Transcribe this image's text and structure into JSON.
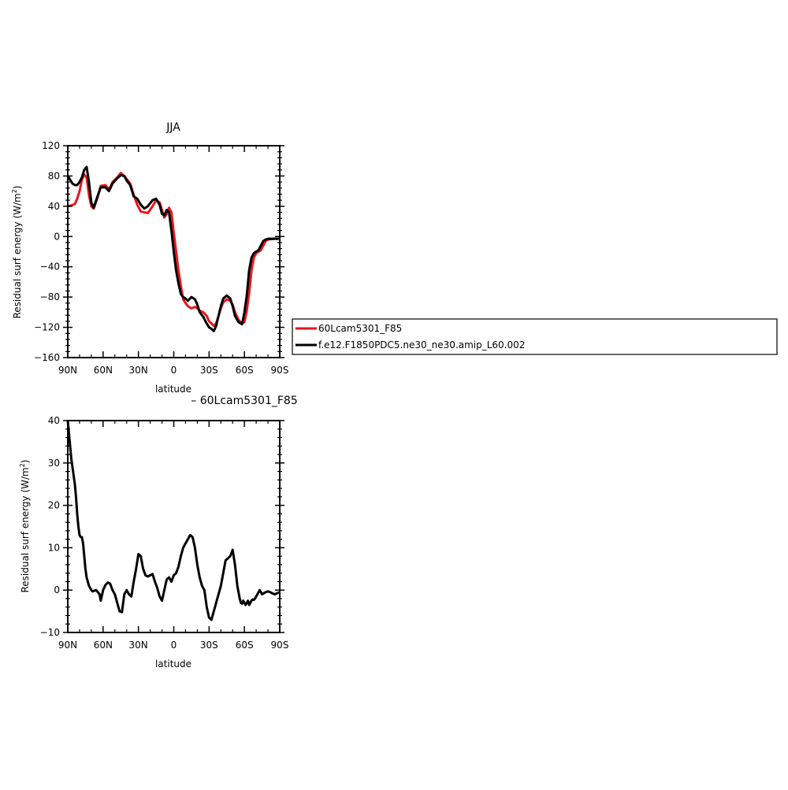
{
  "chart_data": [
    {
      "type": "line",
      "title": "JJA",
      "xlabel": "latitude",
      "ylabel": "Residual surf energy (W/m",
      "ylabel_sup": "2",
      "ylabel_close": ")",
      "xlim": [
        90,
        -90
      ],
      "ylim": [
        -160,
        120
      ],
      "xticks": [
        90,
        60,
        30,
        0,
        -30,
        -60,
        -90
      ],
      "xtick_labels": [
        "90N",
        "60N",
        "30N",
        "0",
        "30S",
        "60S",
        "90S"
      ],
      "yticks": [
        -160,
        -120,
        -80,
        -40,
        0,
        40,
        80,
        120
      ],
      "ytick_labels": [
        "−160",
        "−120",
        "−80",
        "−40",
        "0",
        "40",
        "80",
        "120"
      ],
      "legend_position": "right",
      "series": [
        {
          "name": "60Lcam5301_F85",
          "color": "#e8161b",
          "x": [
            90,
            87,
            84,
            82,
            80,
            78,
            76,
            74,
            72,
            70,
            68,
            65,
            62,
            58,
            55,
            52,
            48,
            45,
            42,
            40,
            37,
            34,
            31,
            28,
            25,
            22,
            18,
            15,
            12,
            10,
            8,
            6,
            4,
            2,
            0,
            -2,
            -4,
            -6,
            -8,
            -10,
            -12,
            -15,
            -18,
            -20,
            -22,
            -25,
            -28,
            -30,
            -32,
            -34,
            -36,
            -38,
            -40,
            -42,
            -45,
            -48,
            -50,
            -52,
            -55,
            -58,
            -60,
            -62,
            -64,
            -66,
            -68,
            -70,
            -72,
            -74,
            -76,
            -78,
            -80,
            -85,
            -88,
            -90
          ],
          "y": [
            40,
            41,
            43,
            50,
            60,
            75,
            82,
            78,
            55,
            40,
            37,
            50,
            67,
            68,
            62,
            72,
            78,
            84,
            80,
            76,
            70,
            55,
            42,
            33,
            32,
            31,
            40,
            48,
            45,
            35,
            25,
            30,
            38,
            32,
            5,
            -20,
            -45,
            -65,
            -83,
            -88,
            -92,
            -95,
            -93,
            -95,
            -98,
            -100,
            -105,
            -112,
            -115,
            -118,
            -115,
            -105,
            -95,
            -87,
            -83,
            -85,
            -90,
            -100,
            -110,
            -115,
            -113,
            -98,
            -75,
            -45,
            -28,
            -22,
            -20,
            -18,
            -12,
            -6,
            -4,
            -3,
            -3,
            -3
          ]
        },
        {
          "name": "f.e12.F1850PDC5.ne30_ne30.amip_L60.002",
          "color": "#000000",
          "x": [
            90,
            88,
            86,
            84,
            82,
            80,
            78,
            76,
            74,
            72,
            70,
            68,
            65,
            62,
            58,
            55,
            52,
            48,
            45,
            42,
            40,
            37,
            34,
            31,
            28,
            25,
            22,
            18,
            15,
            12,
            10,
            8,
            6,
            4,
            2,
            0,
            -2,
            -4,
            -6,
            -8,
            -10,
            -12,
            -15,
            -18,
            -20,
            -22,
            -25,
            -28,
            -30,
            -32,
            -34,
            -36,
            -38,
            -40,
            -42,
            -45,
            -48,
            -50,
            -52,
            -55,
            -58,
            -60,
            -62,
            -64,
            -66,
            -68,
            -70,
            -72,
            -74,
            -76,
            -78,
            -80,
            -85,
            -88,
            -90
          ],
          "y": [
            80,
            75,
            70,
            68,
            68,
            72,
            78,
            88,
            92,
            72,
            45,
            38,
            52,
            65,
            65,
            60,
            70,
            77,
            81,
            80,
            74,
            68,
            53,
            50,
            42,
            37,
            40,
            48,
            50,
            42,
            30,
            28,
            35,
            32,
            8,
            -20,
            -45,
            -62,
            -76,
            -80,
            -82,
            -85,
            -80,
            -83,
            -90,
            -100,
            -106,
            -115,
            -120,
            -122,
            -125,
            -118,
            -105,
            -92,
            -82,
            -78,
            -82,
            -92,
            -105,
            -113,
            -116,
            -100,
            -78,
            -45,
            -28,
            -22,
            -20,
            -18,
            -12,
            -6,
            -4,
            -3,
            -3,
            -3,
            -3
          ]
        }
      ]
    },
    {
      "type": "line",
      "title": "– 60Lcam5301_F85",
      "xlabel": "latitude",
      "ylabel": "Residual surf energy (W/m",
      "ylabel_sup": "2",
      "ylabel_close": ")",
      "xlim": [
        90,
        -90
      ],
      "ylim": [
        -10,
        40
      ],
      "xticks": [
        90,
        60,
        30,
        0,
        -30,
        -60,
        -90
      ],
      "xtick_labels": [
        "90N",
        "60N",
        "30N",
        "0",
        "30S",
        "60S",
        "90S"
      ],
      "yticks": [
        -10,
        0,
        10,
        20,
        30,
        40
      ],
      "ytick_labels": [
        "−10",
        "0",
        "10",
        "20",
        "30",
        "40"
      ],
      "series": [
        {
          "color": "#000000",
          "x": [
            90,
            89,
            88,
            87,
            86,
            85,
            84,
            83,
            82,
            81,
            80,
            79,
            78,
            77,
            76,
            75,
            74,
            73,
            72,
            71,
            70,
            69,
            68,
            66,
            65,
            63,
            62,
            60,
            58,
            56,
            54,
            52,
            50,
            48,
            46,
            44,
            42,
            40,
            38,
            36,
            34,
            32,
            30,
            28,
            26,
            24,
            22,
            20,
            18,
            16,
            14,
            12,
            10,
            8,
            6,
            4,
            2,
            0,
            -2,
            -4,
            -6,
            -8,
            -10,
            -12,
            -14,
            -16,
            -18,
            -20,
            -22,
            -24,
            -26,
            -28,
            -30,
            -32,
            -34,
            -36,
            -38,
            -40,
            -42,
            -44,
            -46,
            -48,
            -50,
            -52,
            -54,
            -56,
            -57,
            -58,
            -59,
            -60,
            -61,
            -62,
            -63,
            -64,
            -65,
            -66,
            -67,
            -68,
            -69,
            -70,
            -71,
            -72,
            -73,
            -74,
            -75,
            -76,
            -78,
            -80,
            -82,
            -84,
            -86,
            -88,
            -90
          ],
          "y": [
            40,
            37,
            34,
            31,
            29,
            27,
            25,
            22,
            18,
            15,
            13,
            12.5,
            12.5,
            11,
            8,
            5,
            3,
            2,
            1,
            0.5,
            0,
            -0.3,
            -0.2,
            0,
            -0.3,
            -1,
            -2.5,
            0,
            1.2,
            1.8,
            1.5,
            0,
            -1,
            -3,
            -5,
            -5.2,
            -1,
            0,
            -1,
            -1.5,
            2,
            5,
            8.5,
            8,
            5,
            3.5,
            3.2,
            3.5,
            3.8,
            2,
            0.5,
            -1.5,
            -2.5,
            0,
            2.5,
            3,
            2,
            3.5,
            4,
            5.5,
            8,
            10,
            11,
            12,
            13,
            12.5,
            10,
            6,
            3,
            1,
            0,
            -4,
            -6.5,
            -7,
            -5,
            -3,
            -1,
            1,
            4,
            7,
            7.5,
            8,
            9.5,
            6,
            1,
            -2,
            -3,
            -3.2,
            -2.5,
            -3,
            -3.5,
            -3,
            -2.5,
            -3.5,
            -3,
            -2.5,
            -2.2,
            -2.3,
            -2,
            -1.5,
            -1,
            -0.5,
            0,
            -0.5,
            -1,
            -0.8,
            -0.5,
            -0.3,
            -0.5,
            -0.8,
            -1,
            -0.7,
            -0.5
          ]
        }
      ]
    }
  ]
}
